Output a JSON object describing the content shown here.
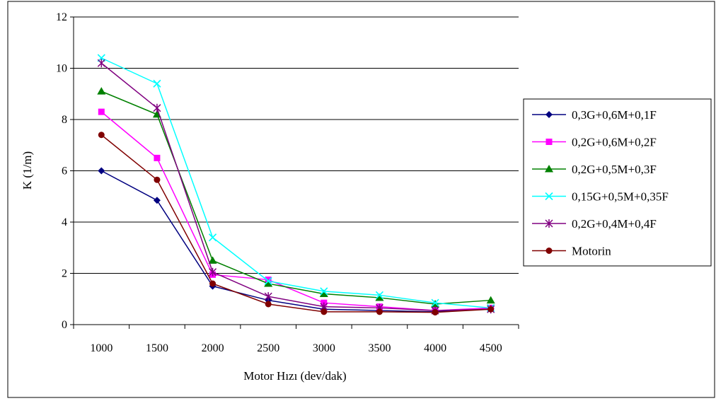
{
  "chart_data": {
    "type": "line",
    "title": "",
    "xlabel": "Motor Hızı (dev/dak)",
    "ylabel": "K (1/m)",
    "x": [
      1000,
      1500,
      2000,
      2500,
      3000,
      3500,
      4000,
      4500
    ],
    "ylim": [
      0,
      12
    ],
    "yticks": [
      0,
      2,
      4,
      6,
      8,
      10,
      12
    ],
    "grid": "horizontal",
    "legend_position": "right",
    "series": [
      {
        "name": "0,3G+0,6M+0,1F",
        "color": "#000080",
        "marker": "diamond",
        "values": [
          6.0,
          4.85,
          1.5,
          0.95,
          0.6,
          0.55,
          0.5,
          0.62
        ]
      },
      {
        "name": "0,2G+0,6M+0,2F",
        "color": "#FF00FF",
        "marker": "square",
        "values": [
          8.3,
          6.5,
          1.95,
          1.75,
          0.85,
          0.7,
          0.55,
          0.65
        ]
      },
      {
        "name": "0,2G+0,5M+0,3F",
        "color": "#008000",
        "marker": "triangle",
        "values": [
          9.1,
          8.2,
          2.5,
          1.6,
          1.2,
          1.05,
          0.8,
          0.95
        ]
      },
      {
        "name": "0,15G+0,5M+0,35F",
        "color": "#00FFFF",
        "marker": "x",
        "values": [
          10.4,
          9.4,
          3.4,
          1.7,
          1.3,
          1.15,
          0.85,
          0.65
        ]
      },
      {
        "name": "0,2G+0,4M+0,4F",
        "color": "#800080",
        "marker": "star",
        "values": [
          10.2,
          8.45,
          2.05,
          1.1,
          0.7,
          0.65,
          0.55,
          0.6
        ]
      },
      {
        "name": "Motorin",
        "color": "#800000",
        "marker": "circle",
        "values": [
          7.4,
          5.65,
          1.6,
          0.8,
          0.5,
          0.5,
          0.48,
          0.6
        ]
      }
    ]
  }
}
